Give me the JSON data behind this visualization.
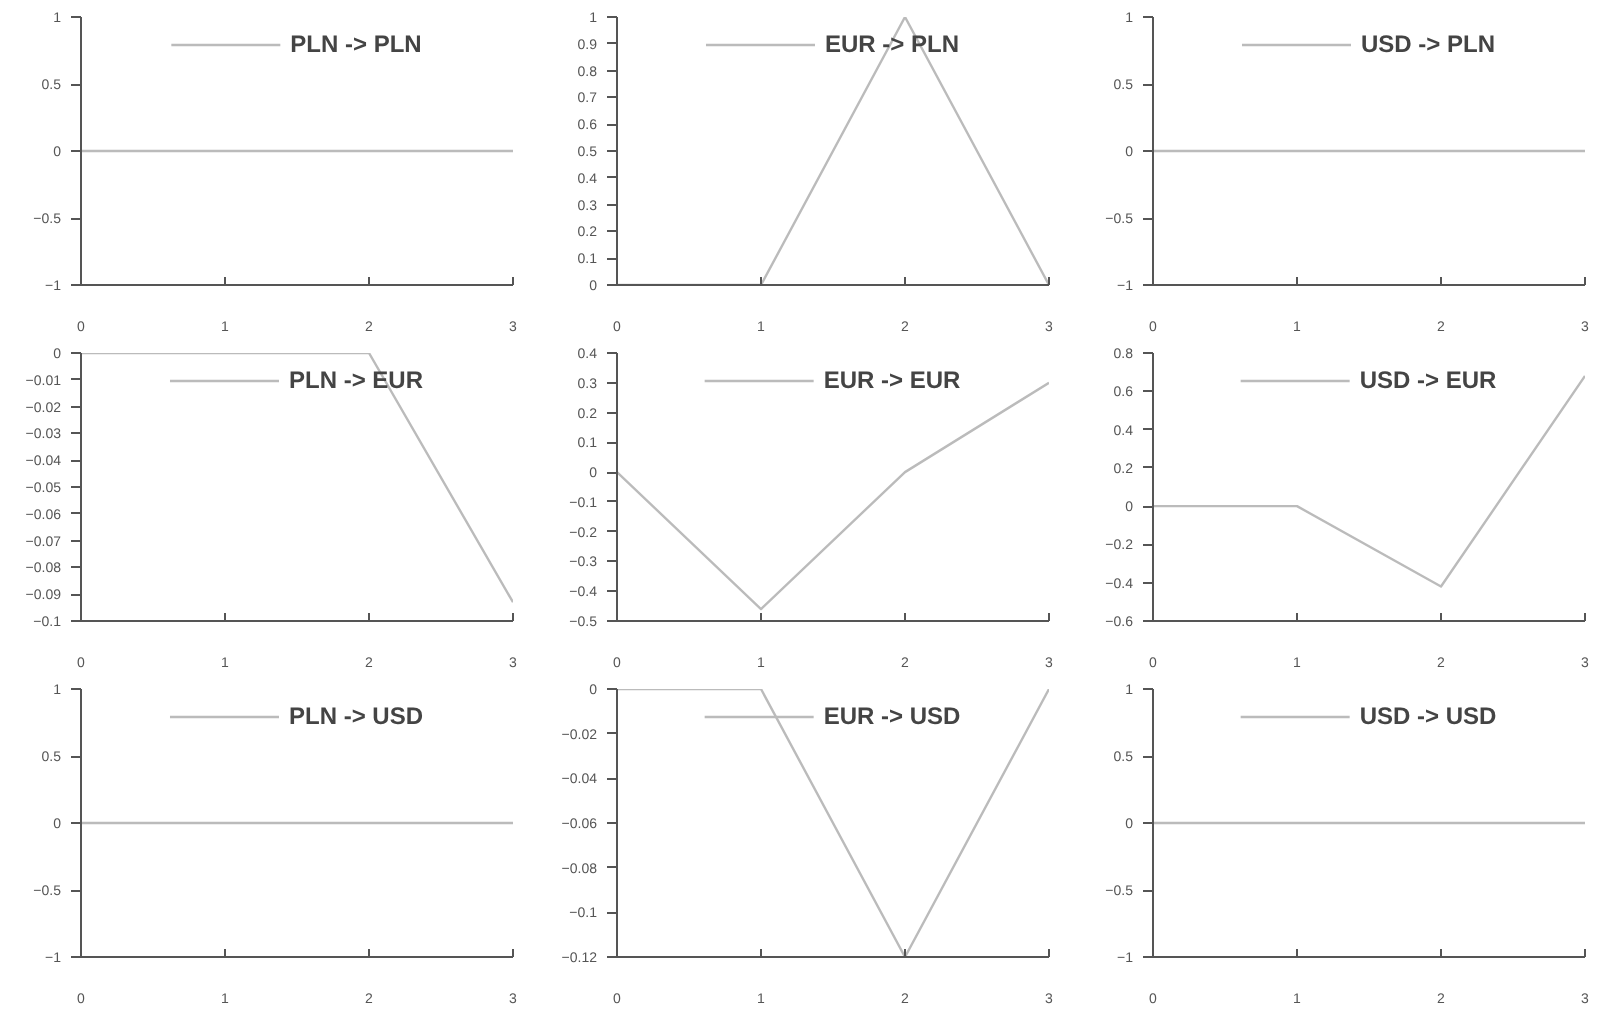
{
  "chart_data": [
    {
      "type": "line",
      "series": [
        {
          "name": "PLN -> PLN",
          "color": "#bbbbbb",
          "values": [
            0,
            0,
            0,
            0
          ]
        }
      ],
      "x": [
        0,
        1,
        2,
        3
      ],
      "xlim": [
        0,
        3
      ],
      "xticks": [
        0,
        1,
        2,
        3
      ],
      "ylim": [
        -1,
        1
      ],
      "yticks": [
        -1,
        -0.5,
        0,
        0.5,
        1
      ],
      "legend": "top",
      "grid": false
    },
    {
      "type": "line",
      "series": [
        {
          "name": "EUR -> PLN",
          "color": "#bbbbbb",
          "values": [
            0,
            0,
            1,
            0
          ]
        }
      ],
      "x": [
        0,
        1,
        2,
        3
      ],
      "xlim": [
        0,
        3
      ],
      "xticks": [
        0,
        1,
        2,
        3
      ],
      "ylim": [
        0,
        1
      ],
      "yticks": [
        0,
        0.1,
        0.2,
        0.3,
        0.4,
        0.5,
        0.6,
        0.7,
        0.8,
        0.9,
        1
      ],
      "legend": "top",
      "grid": false
    },
    {
      "type": "line",
      "series": [
        {
          "name": "USD -> PLN",
          "color": "#bbbbbb",
          "values": [
            0,
            0,
            0,
            0
          ]
        }
      ],
      "x": [
        0,
        1,
        2,
        3
      ],
      "xlim": [
        0,
        3
      ],
      "xticks": [
        0,
        1,
        2,
        3
      ],
      "ylim": [
        -1,
        1
      ],
      "yticks": [
        -1,
        -0.5,
        0,
        0.5,
        1
      ],
      "legend": "top",
      "grid": false
    },
    {
      "type": "line",
      "series": [
        {
          "name": "PLN -> EUR",
          "color": "#bbbbbb",
          "values": [
            0,
            0,
            0,
            -0.093
          ]
        }
      ],
      "x": [
        0,
        1,
        2,
        3
      ],
      "xlim": [
        0,
        3
      ],
      "xticks": [
        0,
        1,
        2,
        3
      ],
      "ylim": [
        -0.1,
        0
      ],
      "yticks": [
        -0.1,
        -0.09,
        -0.08,
        -0.07,
        -0.06,
        -0.05,
        -0.04,
        -0.03,
        -0.02,
        -0.01,
        0
      ],
      "legend": "top",
      "grid": false
    },
    {
      "type": "line",
      "series": [
        {
          "name": "EUR -> EUR",
          "color": "#bbbbbb",
          "values": [
            0,
            -0.46,
            0,
            0.3
          ]
        }
      ],
      "x": [
        0,
        1,
        2,
        3
      ],
      "xlim": [
        0,
        3
      ],
      "xticks": [
        0,
        1,
        2,
        3
      ],
      "ylim": [
        -0.5,
        0.4
      ],
      "yticks": [
        -0.5,
        -0.4,
        -0.3,
        -0.2,
        -0.1,
        0,
        0.1,
        0.2,
        0.3,
        0.4
      ],
      "legend": "top",
      "grid": false
    },
    {
      "type": "line",
      "series": [
        {
          "name": "USD -> EUR",
          "color": "#bbbbbb",
          "values": [
            0,
            0,
            -0.42,
            0.68
          ]
        }
      ],
      "x": [
        0,
        1,
        2,
        3
      ],
      "xlim": [
        0,
        3
      ],
      "xticks": [
        0,
        1,
        2,
        3
      ],
      "ylim": [
        -0.6,
        0.8
      ],
      "yticks": [
        -0.6,
        -0.4,
        -0.2,
        0,
        0.2,
        0.4,
        0.6,
        0.8
      ],
      "legend": "top",
      "grid": false
    },
    {
      "type": "line",
      "series": [
        {
          "name": "PLN -> USD",
          "color": "#bbbbbb",
          "values": [
            0,
            0,
            0,
            0
          ]
        }
      ],
      "x": [
        0,
        1,
        2,
        3
      ],
      "xlim": [
        0,
        3
      ],
      "xticks": [
        0,
        1,
        2,
        3
      ],
      "ylim": [
        -1,
        1
      ],
      "yticks": [
        -1,
        -0.5,
        0,
        0.5,
        1
      ],
      "legend": "top",
      "grid": false
    },
    {
      "type": "line",
      "series": [
        {
          "name": "EUR -> USD",
          "color": "#bbbbbb",
          "values": [
            0,
            0,
            -0.12,
            0
          ]
        }
      ],
      "x": [
        0,
        1,
        2,
        3
      ],
      "xlim": [
        0,
        3
      ],
      "xticks": [
        0,
        1,
        2,
        3
      ],
      "ylim": [
        -0.12,
        0
      ],
      "yticks": [
        -0.12,
        -0.1,
        -0.08,
        -0.06,
        -0.04,
        -0.02,
        0
      ],
      "legend": "top",
      "grid": false
    },
    {
      "type": "line",
      "series": [
        {
          "name": "USD -> USD",
          "color": "#bbbbbb",
          "values": [
            0,
            0,
            0,
            0
          ]
        }
      ],
      "x": [
        0,
        1,
        2,
        3
      ],
      "xlim": [
        0,
        3
      ],
      "xticks": [
        0,
        1,
        2,
        3
      ],
      "ylim": [
        -1,
        1
      ],
      "yticks": [
        -1,
        -0.5,
        0,
        0.5,
        1
      ],
      "legend": "top",
      "grid": false
    }
  ]
}
